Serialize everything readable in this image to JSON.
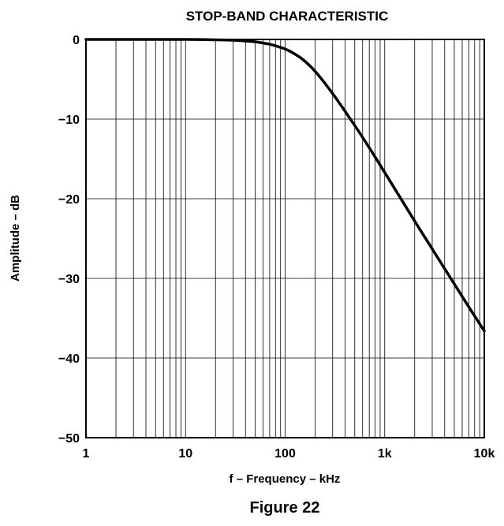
{
  "chart_data": {
    "type": "line",
    "title": "STOP-BAND CHARACTERISTIC",
    "xlabel": "f – Frequency – kHz",
    "ylabel": "Amplitude – dB",
    "x_scale": "log",
    "xlim": [
      1,
      10000
    ],
    "ylim": [
      -50,
      0
    ],
    "x_ticks": [
      {
        "value": 1,
        "label": "1"
      },
      {
        "value": 10,
        "label": "10"
      },
      {
        "value": 100,
        "label": "100"
      },
      {
        "value": 1000,
        "label": "1k"
      },
      {
        "value": 10000,
        "label": "10k"
      }
    ],
    "y_ticks": [
      {
        "value": 0,
        "label": "0"
      },
      {
        "value": -10,
        "label": "−10"
      },
      {
        "value": -20,
        "label": "−20"
      },
      {
        "value": -30,
        "label": "−30"
      },
      {
        "value": -40,
        "label": "−40"
      },
      {
        "value": -50,
        "label": "−50"
      }
    ],
    "grid": true,
    "series": [
      {
        "x": [
          1,
          10,
          20,
          30,
          40,
          50,
          60,
          70,
          80,
          100,
          120,
          150,
          200,
          300,
          500,
          700,
          1000,
          2000,
          3000,
          5000,
          7000,
          10000
        ],
        "y": [
          0,
          0,
          -0.05,
          -0.1,
          -0.2,
          -0.3,
          -0.45,
          -0.6,
          -0.8,
          -1.2,
          -1.7,
          -2.5,
          -4.0,
          -6.8,
          -10.8,
          -13.6,
          -16.7,
          -22.8,
          -26.3,
          -30.7,
          -33.6,
          -36.6
        ]
      }
    ]
  },
  "figure_caption": "Figure 22"
}
